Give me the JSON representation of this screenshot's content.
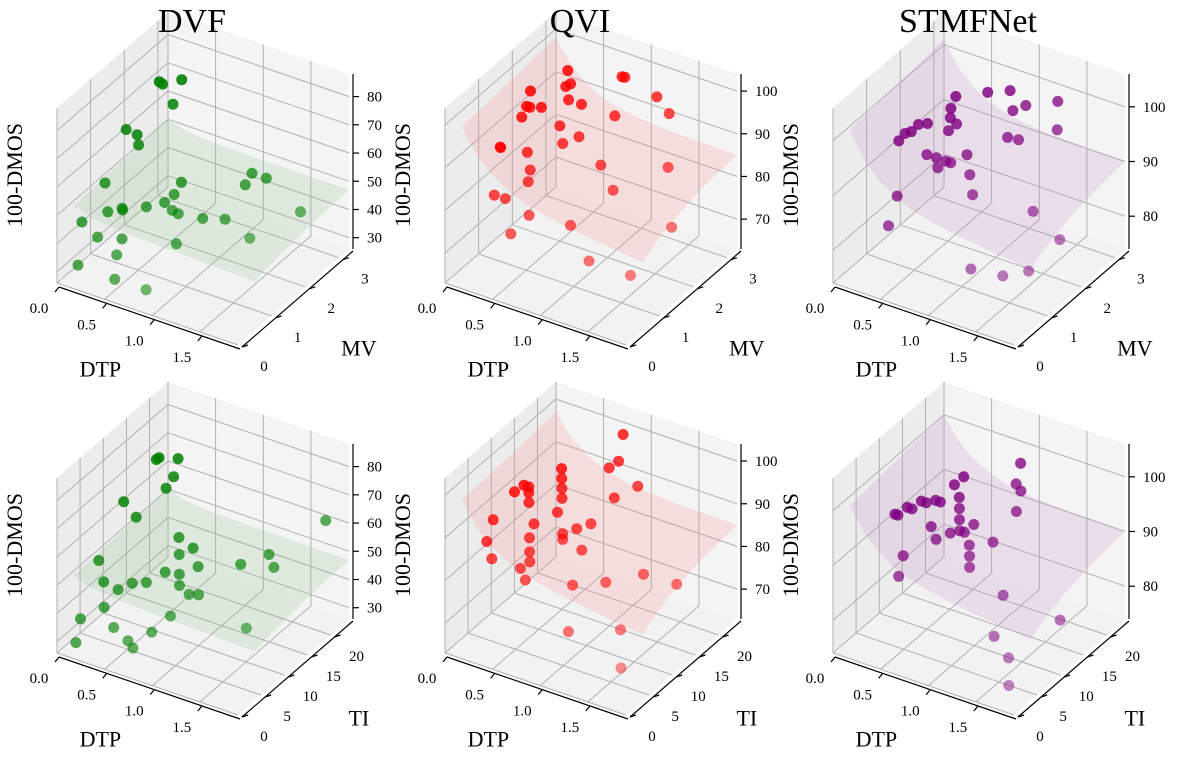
{
  "figure": {
    "columns": [
      "DVF",
      "QVI",
      "STMFNet"
    ]
  },
  "chart_data": [
    {
      "type": "scatter",
      "subtype": "3d-scatter-with-fitted-surface",
      "title": "DVF",
      "xlabel": "DTP",
      "ylabel": "MV",
      "zlabel": "100-DMOS",
      "xlim": [
        0,
        1.9
      ],
      "ylim": [
        0,
        3.3
      ],
      "zlim": [
        26,
        88
      ],
      "xticks": [
        "0.0",
        "0.5",
        "1.0",
        "1.5"
      ],
      "xtick_values": [
        0,
        0.5,
        1.0,
        1.5
      ],
      "yticks": [
        "0",
        "1",
        "2",
        "3"
      ],
      "ytick_values": [
        0,
        1,
        2,
        3
      ],
      "zticks": [
        "30",
        "40",
        "50",
        "60",
        "70",
        "80"
      ],
      "ztick_values": [
        30,
        40,
        50,
        60,
        70,
        80
      ],
      "color": "#008000",
      "surface": {
        "z_at_x0": 50,
        "z_plateau": 47,
        "z_corner": 44,
        "curvature": "mild"
      },
      "points": [
        [
          0.05,
          2.9,
          68
        ],
        [
          0.12,
          2.8,
          69
        ],
        [
          0.25,
          3.0,
          70
        ],
        [
          0.3,
          2.6,
          66
        ],
        [
          0.02,
          2.0,
          60
        ],
        [
          0.1,
          2.1,
          58
        ],
        [
          0.15,
          2.0,
          56
        ],
        [
          0.08,
          1.2,
          50
        ],
        [
          0.18,
          1.0,
          43
        ],
        [
          0.3,
          1.1,
          44
        ],
        [
          0.33,
          1.0,
          46
        ],
        [
          0.05,
          0.6,
          42
        ],
        [
          0.25,
          0.5,
          40
        ],
        [
          0.4,
          0.8,
          38
        ],
        [
          0.45,
          0.5,
          36
        ],
        [
          0.15,
          0.2,
          32
        ],
        [
          0.5,
          0.3,
          30
        ],
        [
          0.9,
          0.1,
          33
        ],
        [
          0.6,
          2.0,
          48
        ],
        [
          0.7,
          1.5,
          50
        ],
        [
          0.75,
          1.3,
          47
        ],
        [
          0.85,
          1.2,
          48
        ],
        [
          1.0,
          1.5,
          45
        ],
        [
          0.9,
          1.0,
          40
        ],
        [
          1.2,
          2.4,
          54
        ],
        [
          1.2,
          2.2,
          52
        ],
        [
          1.35,
          2.4,
          54
        ],
        [
          1.2,
          1.6,
          46
        ],
        [
          1.6,
          1.2,
          48
        ],
        [
          1.85,
          2.0,
          52
        ],
        [
          0.55,
          1.1,
          48
        ],
        [
          0.6,
          1.5,
          46
        ]
      ]
    },
    {
      "type": "scatter",
      "subtype": "3d-scatter-with-fitted-surface",
      "title": "QVI",
      "xlabel": "DTP",
      "ylabel": "MV",
      "zlabel": "100-DMOS",
      "xlim": [
        0,
        1.9
      ],
      "ylim": [
        0,
        3.3
      ],
      "zlim": [
        63,
        104
      ],
      "xticks": [
        "0.0",
        "0.5",
        "1.0",
        "1.5"
      ],
      "xtick_values": [
        0,
        0.5,
        1.0,
        1.5
      ],
      "yticks": [
        "0",
        "1",
        "2",
        "3"
      ],
      "ytick_values": [
        0,
        1,
        2,
        3
      ],
      "zticks": [
        "70",
        "80",
        "90",
        "100"
      ],
      "ztick_values": [
        70,
        80,
        90,
        100
      ],
      "color": "#ff0000",
      "surface": {
        "z_at_x0": 98,
        "z_plateau": 85,
        "z_corner": 78,
        "curvature": "strong"
      },
      "points": [
        [
          0.05,
          2.4,
          92
        ],
        [
          0.08,
          2.2,
          90
        ],
        [
          0.1,
          2.0,
          89
        ],
        [
          0.15,
          2.1,
          91
        ],
        [
          0.2,
          2.3,
          90
        ],
        [
          0.02,
          1.6,
          84
        ],
        [
          0.05,
          1.5,
          85
        ],
        [
          0.3,
          2.8,
          96
        ],
        [
          0.35,
          2.6,
          94
        ],
        [
          0.4,
          2.6,
          95
        ],
        [
          0.45,
          2.4,
          93
        ],
        [
          0.5,
          2.0,
          90
        ],
        [
          0.55,
          2.5,
          92
        ],
        [
          0.3,
          1.6,
          85
        ],
        [
          0.4,
          1.4,
          83
        ],
        [
          0.45,
          1.2,
          82
        ],
        [
          0.6,
          1.8,
          88
        ],
        [
          0.7,
          2.0,
          89
        ],
        [
          0.2,
          0.9,
          79
        ],
        [
          0.35,
          0.8,
          80
        ],
        [
          0.6,
          0.8,
          78
        ],
        [
          0.55,
          0.4,
          76
        ],
        [
          0.9,
          2.8,
          99
        ],
        [
          0.8,
          3.0,
          97
        ],
        [
          0.9,
          2.5,
          92
        ],
        [
          1.0,
          1.8,
          86
        ],
        [
          1.2,
          2.9,
          96
        ],
        [
          1.4,
          2.7,
          95
        ],
        [
          1.2,
          1.6,
          83
        ],
        [
          1.6,
          2.1,
          88
        ],
        [
          1.3,
          0.6,
          74
        ],
        [
          1.7,
          0.7,
          73
        ],
        [
          1.85,
          1.5,
          80
        ],
        [
          1.0,
          0.9,
          78
        ]
      ]
    },
    {
      "type": "scatter",
      "subtype": "3d-scatter-with-fitted-surface",
      "title": "STMFNet",
      "xlabel": "DTP",
      "ylabel": "MV",
      "zlabel": "100-DMOS",
      "xlim": [
        0,
        1.9
      ],
      "ylim": [
        0,
        3.3
      ],
      "zlim": [
        74,
        106
      ],
      "xticks": [
        "0.0",
        "0.5",
        "1.0",
        "1.5"
      ],
      "xtick_values": [
        0,
        0.5,
        1.0,
        1.5
      ],
      "yticks": [
        "0",
        "1",
        "2",
        "3"
      ],
      "ytick_values": [
        0,
        1,
        2,
        3
      ],
      "zticks": [
        "80",
        "90",
        "100"
      ],
      "ztick_values": [
        80,
        90,
        100
      ],
      "color": "#800080",
      "surface": {
        "z_at_x0": 101,
        "z_plateau": 90,
        "z_corner": 85,
        "curvature": "strong"
      },
      "points": [
        [
          0.02,
          1.9,
          90
        ],
        [
          0.05,
          2.0,
          91
        ],
        [
          0.08,
          2.1,
          91
        ],
        [
          0.12,
          2.2,
          92
        ],
        [
          0.18,
          2.3,
          92
        ],
        [
          0.3,
          2.8,
          95
        ],
        [
          0.32,
          2.6,
          94
        ],
        [
          0.35,
          2.5,
          93
        ],
        [
          0.4,
          2.3,
          92
        ],
        [
          0.45,
          2.4,
          93
        ],
        [
          0.35,
          1.8,
          90
        ],
        [
          0.45,
          1.8,
          90
        ],
        [
          0.5,
          1.7,
          89
        ],
        [
          0.55,
          1.8,
          90
        ],
        [
          0.6,
          1.8,
          90
        ],
        [
          0.7,
          2.0,
          91
        ],
        [
          0.8,
          1.8,
          89
        ],
        [
          0.9,
          1.6,
          87
        ],
        [
          0.25,
          1.2,
          85
        ],
        [
          0.3,
          0.8,
          82
        ],
        [
          0.6,
          2.9,
          97
        ],
        [
          0.8,
          3.0,
          98
        ],
        [
          0.9,
          2.8,
          96
        ],
        [
          1.0,
          2.9,
          97
        ],
        [
          1.1,
          2.4,
          94
        ],
        [
          1.3,
          3.0,
          99
        ],
        [
          1.4,
          2.7,
          96
        ],
        [
          1.5,
          1.7,
          87
        ],
        [
          1.2,
          0.7,
          80
        ],
        [
          1.5,
          0.8,
          80
        ],
        [
          1.85,
          1.5,
          85
        ],
        [
          1.7,
          1.0,
          81
        ],
        [
          0.95,
          2.5,
          93
        ]
      ]
    },
    {
      "type": "scatter",
      "subtype": "3d-scatter-with-fitted-surface",
      "title": "",
      "xlabel": "DTP",
      "ylabel": "TI",
      "zlabel": "100-DMOS",
      "xlim": [
        0,
        1.9
      ],
      "ylim": [
        0,
        24
      ],
      "zlim": [
        26,
        88
      ],
      "xticks": [
        "0.0",
        "0.5",
        "1.0",
        "1.5"
      ],
      "xtick_values": [
        0,
        0.5,
        1.0,
        1.5
      ],
      "yticks": [
        "0",
        "5",
        "10",
        "15",
        "20"
      ],
      "ytick_values": [
        0,
        5,
        10,
        15,
        20
      ],
      "zticks": [
        "30",
        "40",
        "50",
        "60",
        "70",
        "80"
      ],
      "ztick_values": [
        30,
        40,
        50,
        60,
        70,
        80
      ],
      "color": "#008000",
      "surface": {
        "z_at_x0": 50,
        "z_plateau": 47,
        "z_corner": 44,
        "curvature": "mild"
      },
      "points": [
        [
          0.1,
          20,
          68
        ],
        [
          0.12,
          19,
          69
        ],
        [
          0.3,
          20,
          70
        ],
        [
          0.35,
          18,
          67
        ],
        [
          0.32,
          17,
          64
        ],
        [
          0.02,
          14,
          60
        ],
        [
          0.2,
          13,
          58
        ],
        [
          0.05,
          8,
          48
        ],
        [
          0.15,
          7,
          43
        ],
        [
          0.35,
          6,
          44
        ],
        [
          0.45,
          7,
          46
        ],
        [
          0.55,
          8,
          46
        ],
        [
          0.3,
          4,
          40
        ],
        [
          0.15,
          2,
          37
        ],
        [
          0.45,
          3,
          36
        ],
        [
          0.6,
          3,
          33
        ],
        [
          0.15,
          1,
          30
        ],
        [
          0.7,
          2,
          33
        ],
        [
          0.8,
          4,
          37
        ],
        [
          0.9,
          6,
          41
        ],
        [
          0.65,
          10,
          48
        ],
        [
          0.7,
          12,
          52
        ],
        [
          0.75,
          11,
          47
        ],
        [
          0.85,
          13,
          48
        ],
        [
          0.8,
          10,
          45
        ],
        [
          0.95,
          9,
          45
        ],
        [
          1.0,
          10,
          44
        ],
        [
          1.2,
          15,
          50
        ],
        [
          1.4,
          17,
          53
        ],
        [
          1.5,
          16,
          51
        ],
        [
          1.55,
          9,
          40
        ],
        [
          1.85,
          20,
          66
        ],
        [
          0.6,
          14,
          54
        ],
        [
          0.7,
          15,
          50
        ]
      ]
    },
    {
      "type": "scatter",
      "subtype": "3d-scatter-with-fitted-surface",
      "title": "",
      "xlabel": "DTP",
      "ylabel": "TI",
      "zlabel": "100-DMOS",
      "xlim": [
        0,
        1.9
      ],
      "ylim": [
        0,
        24
      ],
      "zlim": [
        63,
        104
      ],
      "xticks": [
        "0.0",
        "0.5",
        "1.0",
        "1.5"
      ],
      "xtick_values": [
        0,
        0.5,
        1.0,
        1.5
      ],
      "yticks": [
        "0",
        "5",
        "10",
        "15",
        "20"
      ],
      "ytick_values": [
        0,
        5,
        10,
        15,
        20
      ],
      "zticks": [
        "70",
        "80",
        "90",
        "100"
      ],
      "ztick_values": [
        70,
        80,
        90,
        100
      ],
      "color": "#ff0000",
      "surface": {
        "z_at_x0": 97,
        "z_plateau": 85,
        "z_corner": 77,
        "curvature": "strong"
      },
      "points": [
        [
          0.05,
          14,
          88
        ],
        [
          0.1,
          15,
          89
        ],
        [
          0.15,
          15,
          89
        ],
        [
          0.2,
          14,
          89
        ],
        [
          0.25,
          13,
          88
        ],
        [
          0.02,
          10,
          85
        ],
        [
          0.05,
          8,
          82
        ],
        [
          0.2,
          6,
          81
        ],
        [
          0.35,
          18,
          92
        ],
        [
          0.4,
          17,
          91
        ],
        [
          0.45,
          16,
          90
        ],
        [
          0.5,
          15,
          89
        ],
        [
          0.55,
          13,
          88
        ],
        [
          0.4,
          11,
          86
        ],
        [
          0.45,
          9,
          85
        ],
        [
          0.5,
          8,
          83
        ],
        [
          0.55,
          7,
          82
        ],
        [
          0.5,
          6,
          81
        ],
        [
          0.6,
          5,
          80
        ],
        [
          0.7,
          11,
          86
        ],
        [
          0.75,
          10,
          86
        ],
        [
          0.8,
          12,
          87
        ],
        [
          0.9,
          13,
          88
        ],
        [
          0.95,
          10,
          85
        ],
        [
          1.0,
          7,
          80
        ],
        [
          0.85,
          21,
          101
        ],
        [
          0.9,
          19,
          97
        ],
        [
          0.85,
          18,
          96
        ],
        [
          1.0,
          16,
          92
        ],
        [
          1.15,
          18,
          94
        ],
        [
          1.3,
          8,
          82
        ],
        [
          1.55,
          11,
          83
        ],
        [
          1.6,
          5,
          76
        ],
        [
          1.85,
          12,
          82
        ],
        [
          1.15,
          3,
          74
        ],
        [
          1.75,
          2,
          71
        ]
      ]
    },
    {
      "type": "scatter",
      "subtype": "3d-scatter-with-fitted-surface",
      "title": "",
      "xlabel": "DTP",
      "ylabel": "TI",
      "zlabel": "100-DMOS",
      "xlim": [
        0,
        1.9
      ],
      "ylim": [
        0,
        24
      ],
      "zlim": [
        74,
        106
      ],
      "xticks": [
        "0.0",
        "0.5",
        "1.0",
        "1.5"
      ],
      "xtick_values": [
        0,
        0.5,
        1.0,
        1.5
      ],
      "yticks": [
        "0",
        "5",
        "10",
        "15",
        "20"
      ],
      "ytick_values": [
        0,
        5,
        10,
        15,
        20
      ],
      "zticks": [
        "80",
        "90",
        "100"
      ],
      "ztick_values": [
        80,
        90,
        100
      ],
      "color": "#800080",
      "surface": {
        "z_at_x0": 100,
        "z_plateau": 90,
        "z_corner": 85,
        "curvature": "strong"
      },
      "points": [
        [
          0.02,
          13,
          90
        ],
        [
          0.05,
          13,
          90
        ],
        [
          0.1,
          14,
          91
        ],
        [
          0.15,
          14,
          91
        ],
        [
          0.2,
          15,
          92
        ],
        [
          0.25,
          15,
          92
        ],
        [
          0.3,
          16,
          92
        ],
        [
          0.35,
          16,
          92
        ],
        [
          0.4,
          18,
          94
        ],
        [
          0.45,
          19,
          95
        ],
        [
          0.5,
          17,
          93
        ],
        [
          0.55,
          16,
          92
        ],
        [
          0.6,
          15,
          91
        ],
        [
          0.65,
          14,
          90
        ],
        [
          0.4,
          13,
          90
        ],
        [
          0.5,
          12,
          89
        ],
        [
          0.6,
          13,
          90
        ],
        [
          0.7,
          14,
          90
        ],
        [
          0.75,
          15,
          91
        ],
        [
          0.8,
          13,
          89
        ],
        [
          0.85,
          12,
          88
        ],
        [
          0.3,
          9,
          87
        ],
        [
          0.35,
          7,
          85
        ],
        [
          0.9,
          11,
          87
        ],
        [
          1.0,
          14,
          90
        ],
        [
          0.95,
          21,
          99
        ],
        [
          1.0,
          19,
          97
        ],
        [
          1.05,
          19,
          96
        ],
        [
          1.1,
          17,
          94
        ],
        [
          1.3,
          10,
          85
        ],
        [
          1.4,
          6,
          81
        ],
        [
          1.6,
          5,
          79
        ],
        [
          1.85,
          11,
          83
        ],
        [
          1.7,
          3,
          76
        ]
      ]
    }
  ]
}
